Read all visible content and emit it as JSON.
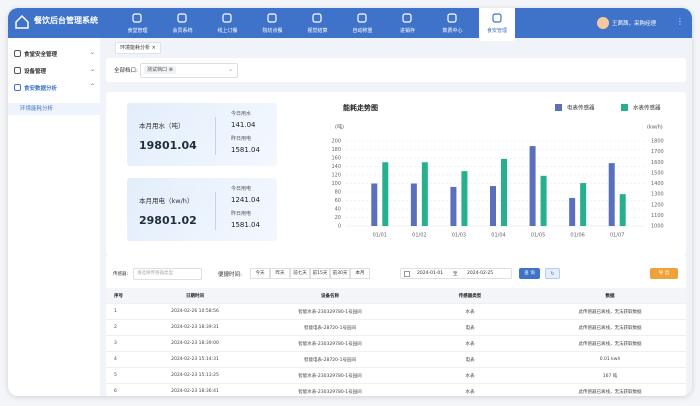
{
  "header": {
    "title": "餐饮后台管理系统",
    "nav": [
      "食堂管理",
      "会员系统",
      "线上订餐",
      "院坊点餐",
      "视觉结算",
      "自动称重",
      "进销存",
      "数费中心",
      "食安管理"
    ],
    "user": "王茜茜，采购经理"
  },
  "sidebar": {
    "items": [
      "食堂安全管理",
      "设备管理",
      "食安数据分析"
    ],
    "sub_item": "环境能耗分析"
  },
  "tab": "环境能耗分析",
  "filter": {
    "label": "全部档口:",
    "value": "测试档口"
  },
  "cards": [
    {
      "title": "本月用水（吨）",
      "value": "19801.04",
      "stats": [
        {
          "label": "今日用水",
          "value": "141.04"
        },
        {
          "label": "昨日用电",
          "value": "1581.04"
        }
      ]
    },
    {
      "title": "本月用电（kw/h）",
      "value": "29801.02",
      "stats": [
        {
          "label": "今日用电",
          "value": "1241.04"
        },
        {
          "label": "昨日用电",
          "value": "1581.04"
        }
      ]
    }
  ],
  "chart_data": {
    "type": "bar",
    "title": "能耗走势图",
    "categories": [
      "01/01",
      "01/02",
      "01/03",
      "01/04",
      "01/05",
      "01/06",
      "01/07"
    ],
    "series": [
      {
        "name": "电表传感器",
        "color": "#5b6fbf",
        "values": [
          100,
          100,
          92,
          94,
          188,
          66,
          148
        ]
      },
      {
        "name": "水表传感器",
        "color": "#27b08e",
        "values": [
          150,
          150,
          129,
          158,
          118,
          101,
          75
        ]
      }
    ],
    "ylim": [
      0,
      200
    ],
    "yticks": [
      0,
      20,
      40,
      60,
      80,
      100,
      120,
      140,
      160,
      180,
      200
    ],
    "y_label": "(吨)",
    "y2lim": [
      1000,
      1800
    ],
    "y2ticks": [
      1000,
      1100,
      1200,
      1300,
      1400,
      1500,
      1600,
      1700,
      1800
    ],
    "y2_label": "(kw/h)",
    "grid": true,
    "legend": "top-right"
  },
  "table": {
    "sensor_label": "传感器:",
    "sensor_placeholder": "请选择传感器类型",
    "quick_label": "便捷时间:",
    "quick": [
      "今天",
      "昨天",
      "前七天",
      "前15天",
      "前30天",
      "本月"
    ],
    "date_from": "2024-01-01",
    "date_sep": "至",
    "date_to": "2024-02-25",
    "search": "查 询",
    "export": "导 出",
    "columns": [
      "序号",
      "日期时间",
      "设备名称",
      "传感器类型",
      "数据"
    ],
    "rows": [
      [
        "1",
        "2024-02-26 10:58:56",
        "智能水表-230329780-1号园间",
        "水表",
        "此传感器已离线，无法获取数据"
      ],
      [
        "2",
        "2024-02-23 18:39:31",
        "智能电表-28720-1号园间",
        "电表",
        "此传感器已离线，无法获取数据"
      ],
      [
        "3",
        "2024-02-23 18:39:00",
        "智能水表-230329780-1号园间",
        "水表",
        "此传感器已离线，无法获取数据"
      ],
      [
        "4",
        "2024-02-23 15:14:31",
        "智能电表-28720-1号园间",
        "电表",
        "0.01 kwh"
      ],
      [
        "5",
        "2024-02-23 15:13:25",
        "智能水表-230329780-1号园间",
        "水表",
        "167 吨"
      ],
      [
        "6",
        "2024-02-23 18:36:41",
        "智能水表-230329780-1号园间",
        "水表",
        "此传感器已离线，无法获取数据"
      ]
    ]
  }
}
